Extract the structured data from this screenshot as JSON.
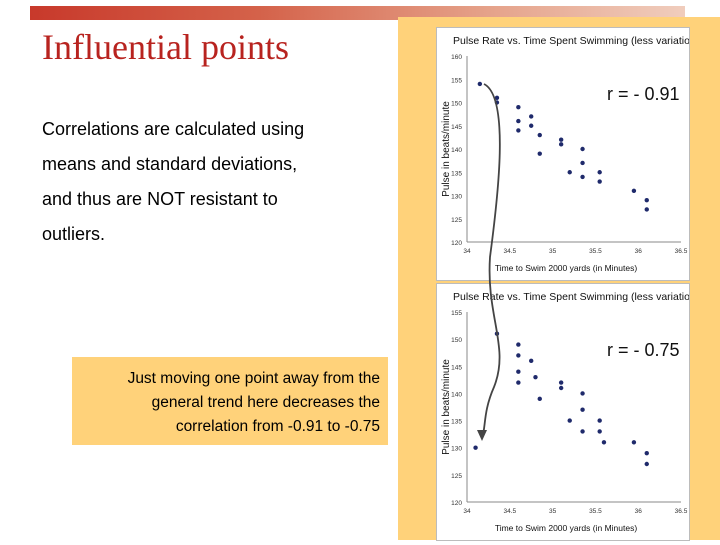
{
  "slide": {
    "title": "Influential points",
    "body": [
      "Correlations are calculated using",
      "means and standard deviations,",
      "and thus are NOT resistant to",
      "outliers."
    ],
    "callout": [
      "Just moving one point away from the",
      "general trend here decreases the",
      "correlation from -0.91 to -0.75"
    ]
  },
  "colors": {
    "title": "#b8231f",
    "accent_panel": "#ffd27a",
    "points": "#1f2a6b"
  },
  "chart_data": [
    {
      "type": "scatter",
      "title": "Pulse Rate vs. Time Spent Swimming (less variation)",
      "xlabel": "Time to Swim 2000 yards (in Minutes)",
      "ylabel": "Pulse in beats/minute",
      "xlim": [
        34,
        36.5
      ],
      "ylim": [
        120,
        160
      ],
      "x_ticks": [
        "34",
        "34.5",
        "35",
        "35.5",
        "36",
        "36.5"
      ],
      "y_ticks": [
        "120",
        "125",
        "130",
        "135",
        "140",
        "145",
        "150",
        "155",
        "160"
      ],
      "annotation": "r = - 0.91",
      "points": [
        {
          "x": 34.15,
          "y": 154
        },
        {
          "x": 34.35,
          "y": 150
        },
        {
          "x": 34.35,
          "y": 151
        },
        {
          "x": 34.6,
          "y": 149
        },
        {
          "x": 34.6,
          "y": 146
        },
        {
          "x": 34.6,
          "y": 144
        },
        {
          "x": 34.75,
          "y": 147
        },
        {
          "x": 34.75,
          "y": 145
        },
        {
          "x": 34.85,
          "y": 143
        },
        {
          "x": 34.85,
          "y": 139
        },
        {
          "x": 35.1,
          "y": 142
        },
        {
          "x": 35.1,
          "y": 141
        },
        {
          "x": 35.2,
          "y": 135
        },
        {
          "x": 35.35,
          "y": 140
        },
        {
          "x": 35.35,
          "y": 137
        },
        {
          "x": 35.35,
          "y": 134
        },
        {
          "x": 35.55,
          "y": 135
        },
        {
          "x": 35.55,
          "y": 133
        },
        {
          "x": 35.95,
          "y": 131
        },
        {
          "x": 36.1,
          "y": 129
        },
        {
          "x": 36.1,
          "y": 127
        }
      ]
    },
    {
      "type": "scatter",
      "title": "Pulse Rate vs. Time Spent Swimming (less variation)",
      "xlabel": "Time to Swim 2000 yards (in Minutes)",
      "ylabel": "Pulse in beats/minute",
      "xlim": [
        34,
        36.5
      ],
      "ylim": [
        120,
        155
      ],
      "x_ticks": [
        "34",
        "34.5",
        "35",
        "35.5",
        "36",
        "36.5"
      ],
      "y_ticks": [
        "120",
        "125",
        "130",
        "135",
        "140",
        "145",
        "150",
        "155"
      ],
      "annotation": "r = - 0.75",
      "points": [
        {
          "x": 34.1,
          "y": 130
        },
        {
          "x": 34.35,
          "y": 151
        },
        {
          "x": 34.6,
          "y": 149
        },
        {
          "x": 34.6,
          "y": 147
        },
        {
          "x": 34.6,
          "y": 144
        },
        {
          "x": 34.6,
          "y": 142
        },
        {
          "x": 34.75,
          "y": 146
        },
        {
          "x": 34.8,
          "y": 143
        },
        {
          "x": 34.85,
          "y": 139
        },
        {
          "x": 35.1,
          "y": 142
        },
        {
          "x": 35.1,
          "y": 141
        },
        {
          "x": 35.2,
          "y": 135
        },
        {
          "x": 35.35,
          "y": 140
        },
        {
          "x": 35.35,
          "y": 137
        },
        {
          "x": 35.35,
          "y": 133
        },
        {
          "x": 35.55,
          "y": 135
        },
        {
          "x": 35.55,
          "y": 133
        },
        {
          "x": 35.6,
          "y": 131
        },
        {
          "x": 35.95,
          "y": 131
        },
        {
          "x": 36.1,
          "y": 129
        },
        {
          "x": 36.1,
          "y": 127
        }
      ]
    }
  ]
}
